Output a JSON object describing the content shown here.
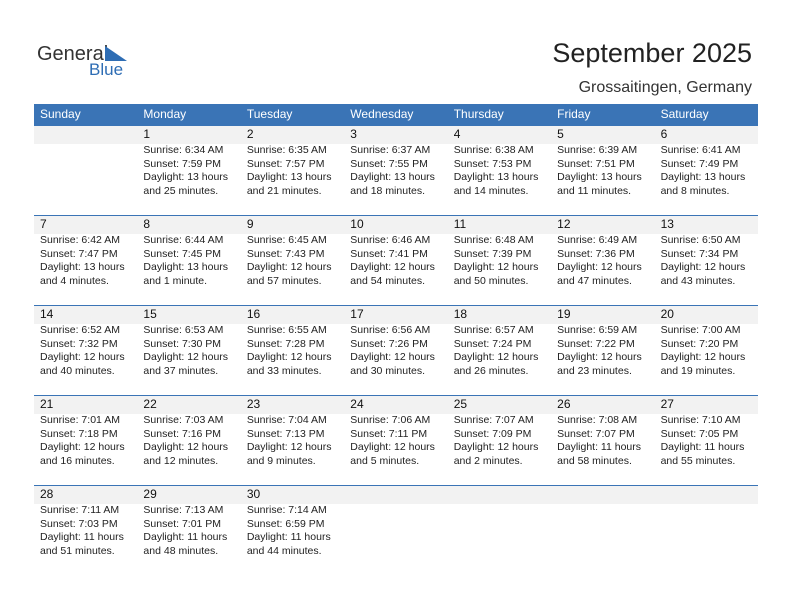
{
  "header": {
    "logo": {
      "word1": "General",
      "word2": "Blue"
    },
    "title": "September 2025",
    "location": "Grossaitingen, Germany"
  },
  "weekdays": [
    "Sunday",
    "Monday",
    "Tuesday",
    "Wednesday",
    "Thursday",
    "Friday",
    "Saturday"
  ],
  "weeks": [
    [
      null,
      {
        "day": 1,
        "sunrise": "Sunrise: 6:34 AM",
        "sunset": "Sunset: 7:59 PM",
        "daylight": "Daylight: 13 hours",
        "more": "and 25 minutes."
      },
      {
        "day": 2,
        "sunrise": "Sunrise: 6:35 AM",
        "sunset": "Sunset: 7:57 PM",
        "daylight": "Daylight: 13 hours",
        "more": "and 21 minutes."
      },
      {
        "day": 3,
        "sunrise": "Sunrise: 6:37 AM",
        "sunset": "Sunset: 7:55 PM",
        "daylight": "Daylight: 13 hours",
        "more": "and 18 minutes."
      },
      {
        "day": 4,
        "sunrise": "Sunrise: 6:38 AM",
        "sunset": "Sunset: 7:53 PM",
        "daylight": "Daylight: 13 hours",
        "more": "and 14 minutes."
      },
      {
        "day": 5,
        "sunrise": "Sunrise: 6:39 AM",
        "sunset": "Sunset: 7:51 PM",
        "daylight": "Daylight: 13 hours",
        "more": "and 11 minutes."
      },
      {
        "day": 6,
        "sunrise": "Sunrise: 6:41 AM",
        "sunset": "Sunset: 7:49 PM",
        "daylight": "Daylight: 13 hours",
        "more": "and 8 minutes."
      }
    ],
    [
      {
        "day": 7,
        "sunrise": "Sunrise: 6:42 AM",
        "sunset": "Sunset: 7:47 PM",
        "daylight": "Daylight: 13 hours",
        "more": "and 4 minutes."
      },
      {
        "day": 8,
        "sunrise": "Sunrise: 6:44 AM",
        "sunset": "Sunset: 7:45 PM",
        "daylight": "Daylight: 13 hours",
        "more": "and 1 minute."
      },
      {
        "day": 9,
        "sunrise": "Sunrise: 6:45 AM",
        "sunset": "Sunset: 7:43 PM",
        "daylight": "Daylight: 12 hours",
        "more": "and 57 minutes."
      },
      {
        "day": 10,
        "sunrise": "Sunrise: 6:46 AM",
        "sunset": "Sunset: 7:41 PM",
        "daylight": "Daylight: 12 hours",
        "more": "and 54 minutes."
      },
      {
        "day": 11,
        "sunrise": "Sunrise: 6:48 AM",
        "sunset": "Sunset: 7:39 PM",
        "daylight": "Daylight: 12 hours",
        "more": "and 50 minutes."
      },
      {
        "day": 12,
        "sunrise": "Sunrise: 6:49 AM",
        "sunset": "Sunset: 7:36 PM",
        "daylight": "Daylight: 12 hours",
        "more": "and 47 minutes."
      },
      {
        "day": 13,
        "sunrise": "Sunrise: 6:50 AM",
        "sunset": "Sunset: 7:34 PM",
        "daylight": "Daylight: 12 hours",
        "more": "and 43 minutes."
      }
    ],
    [
      {
        "day": 14,
        "sunrise": "Sunrise: 6:52 AM",
        "sunset": "Sunset: 7:32 PM",
        "daylight": "Daylight: 12 hours",
        "more": "and 40 minutes."
      },
      {
        "day": 15,
        "sunrise": "Sunrise: 6:53 AM",
        "sunset": "Sunset: 7:30 PM",
        "daylight": "Daylight: 12 hours",
        "more": "and 37 minutes."
      },
      {
        "day": 16,
        "sunrise": "Sunrise: 6:55 AM",
        "sunset": "Sunset: 7:28 PM",
        "daylight": "Daylight: 12 hours",
        "more": "and 33 minutes."
      },
      {
        "day": 17,
        "sunrise": "Sunrise: 6:56 AM",
        "sunset": "Sunset: 7:26 PM",
        "daylight": "Daylight: 12 hours",
        "more": "and 30 minutes."
      },
      {
        "day": 18,
        "sunrise": "Sunrise: 6:57 AM",
        "sunset": "Sunset: 7:24 PM",
        "daylight": "Daylight: 12 hours",
        "more": "and 26 minutes."
      },
      {
        "day": 19,
        "sunrise": "Sunrise: 6:59 AM",
        "sunset": "Sunset: 7:22 PM",
        "daylight": "Daylight: 12 hours",
        "more": "and 23 minutes."
      },
      {
        "day": 20,
        "sunrise": "Sunrise: 7:00 AM",
        "sunset": "Sunset: 7:20 PM",
        "daylight": "Daylight: 12 hours",
        "more": "and 19 minutes."
      }
    ],
    [
      {
        "day": 21,
        "sunrise": "Sunrise: 7:01 AM",
        "sunset": "Sunset: 7:18 PM",
        "daylight": "Daylight: 12 hours",
        "more": "and 16 minutes."
      },
      {
        "day": 22,
        "sunrise": "Sunrise: 7:03 AM",
        "sunset": "Sunset: 7:16 PM",
        "daylight": "Daylight: 12 hours",
        "more": "and 12 minutes."
      },
      {
        "day": 23,
        "sunrise": "Sunrise: 7:04 AM",
        "sunset": "Sunset: 7:13 PM",
        "daylight": "Daylight: 12 hours",
        "more": "and 9 minutes."
      },
      {
        "day": 24,
        "sunrise": "Sunrise: 7:06 AM",
        "sunset": "Sunset: 7:11 PM",
        "daylight": "Daylight: 12 hours",
        "more": "and 5 minutes."
      },
      {
        "day": 25,
        "sunrise": "Sunrise: 7:07 AM",
        "sunset": "Sunset: 7:09 PM",
        "daylight": "Daylight: 12 hours",
        "more": "and 2 minutes."
      },
      {
        "day": 26,
        "sunrise": "Sunrise: 7:08 AM",
        "sunset": "Sunset: 7:07 PM",
        "daylight": "Daylight: 11 hours",
        "more": "and 58 minutes."
      },
      {
        "day": 27,
        "sunrise": "Sunrise: 7:10 AM",
        "sunset": "Sunset: 7:05 PM",
        "daylight": "Daylight: 11 hours",
        "more": "and 55 minutes."
      }
    ],
    [
      {
        "day": 28,
        "sunrise": "Sunrise: 7:11 AM",
        "sunset": "Sunset: 7:03 PM",
        "daylight": "Daylight: 11 hours",
        "more": "and 51 minutes."
      },
      {
        "day": 29,
        "sunrise": "Sunrise: 7:13 AM",
        "sunset": "Sunset: 7:01 PM",
        "daylight": "Daylight: 11 hours",
        "more": "and 48 minutes."
      },
      {
        "day": 30,
        "sunrise": "Sunrise: 7:14 AM",
        "sunset": "Sunset: 6:59 PM",
        "daylight": "Daylight: 11 hours",
        "more": "and 44 minutes."
      },
      null,
      null,
      null,
      null
    ]
  ]
}
